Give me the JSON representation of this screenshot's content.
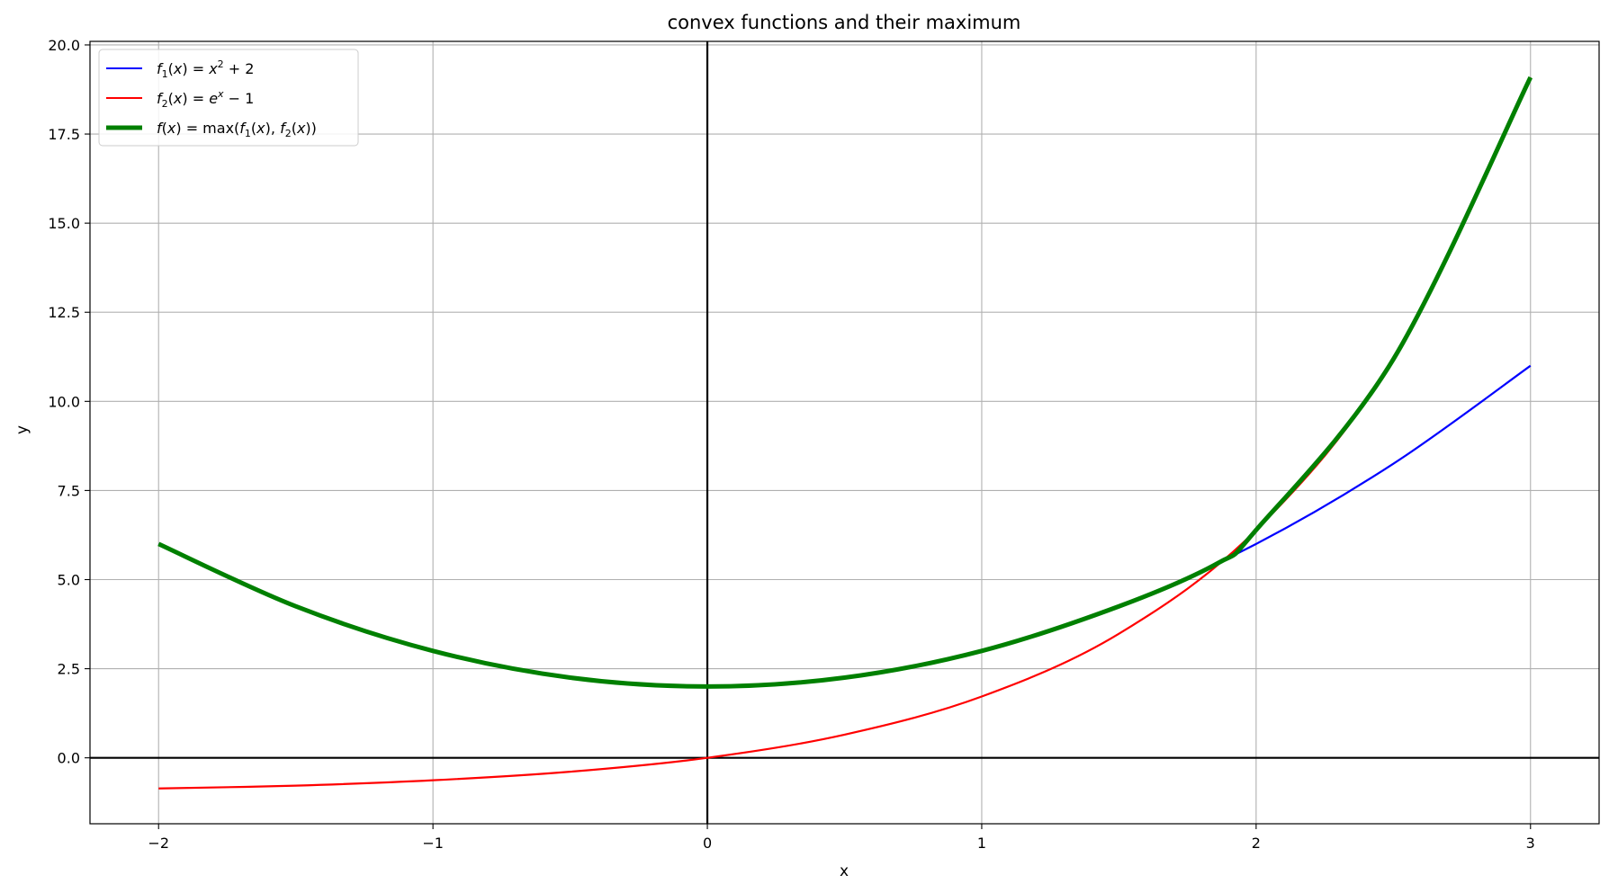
{
  "chart_data": {
    "type": "line",
    "title": "convex functions and their maximum",
    "xlabel": "x",
    "ylabel": "y",
    "xlim": [
      -2.25,
      3.25
    ],
    "ylim": [
      -1.85,
      20.1
    ],
    "xticks": [
      -2,
      -1,
      0,
      1,
      2,
      3
    ],
    "xtick_labels": [
      "−2",
      "−1",
      "0",
      "1",
      "2",
      "3"
    ],
    "yticks": [
      0.0,
      2.5,
      5.0,
      7.5,
      10.0,
      12.5,
      15.0,
      17.5,
      20.0
    ],
    "ytick_labels": [
      "0.0",
      "2.5",
      "5.0",
      "7.5",
      "10.0",
      "12.5",
      "15.0",
      "17.5",
      "20.0"
    ],
    "grid": true,
    "zero_axes": true,
    "legend_position": "upper-left",
    "x_domain": [
      -2,
      3
    ],
    "series": [
      {
        "name": "f1(x) = x^2 + 2",
        "color": "#0000ff",
        "line_width": "thin",
        "x": [
          -2.0,
          -1.5,
          -1.0,
          -0.5,
          0.0,
          0.5,
          1.0,
          1.5,
          2.0,
          2.5,
          3.0
        ],
        "y": [
          6.0,
          4.25,
          3.0,
          2.25,
          2.0,
          2.25,
          3.0,
          4.25,
          6.0,
          8.25,
          11.0
        ]
      },
      {
        "name": "f2(x) = e^x − 1",
        "color": "#ff0000",
        "line_width": "thin",
        "x": [
          -2.0,
          -1.5,
          -1.0,
          -0.5,
          0.0,
          0.5,
          1.0,
          1.5,
          2.0,
          2.5,
          3.0
        ],
        "y": [
          -0.86,
          -0.78,
          -0.63,
          -0.39,
          0.0,
          0.65,
          1.72,
          3.48,
          6.39,
          11.18,
          19.09
        ]
      },
      {
        "name": "f(x) = max(f1(x), f2(x))",
        "color": "#008000",
        "line_width": "thick",
        "x": [
          -2.0,
          -1.5,
          -1.0,
          -0.5,
          0.0,
          0.5,
          1.0,
          1.5,
          1.86,
          2.0,
          2.5,
          3.0
        ],
        "y": [
          6.0,
          4.25,
          3.0,
          2.25,
          2.0,
          2.25,
          3.0,
          4.25,
          5.46,
          6.39,
          11.18,
          19.09
        ]
      }
    ]
  }
}
